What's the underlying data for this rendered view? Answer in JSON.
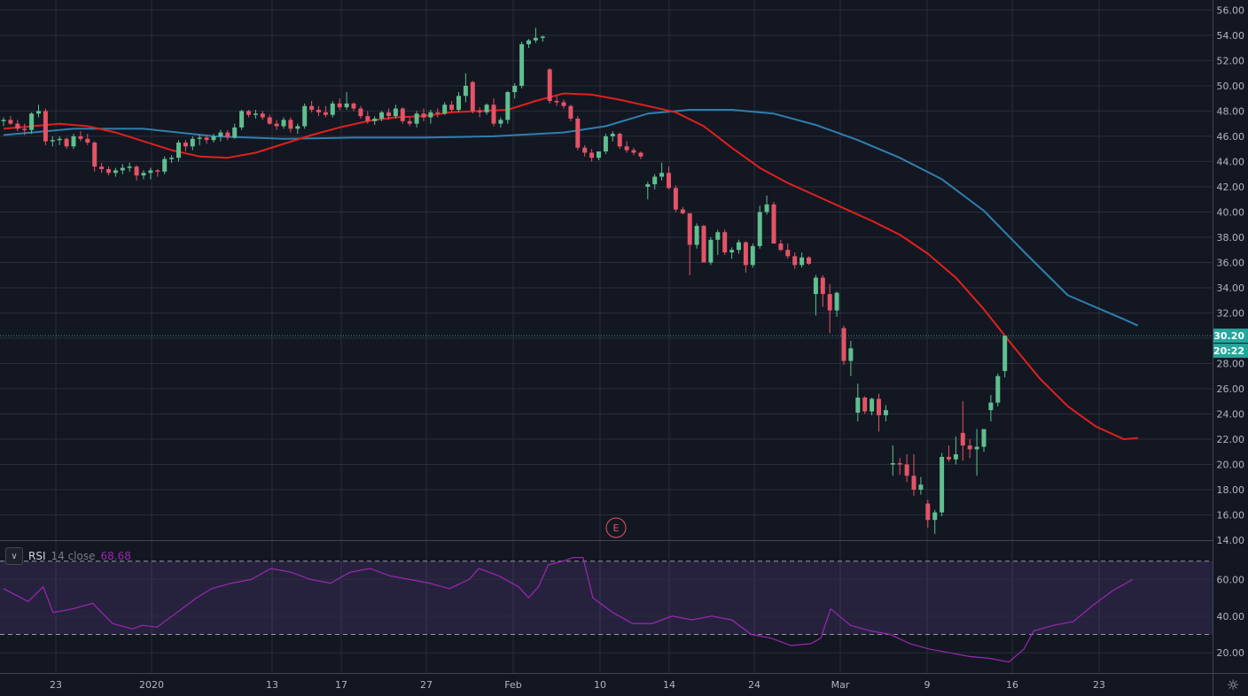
{
  "chart_data": [
    {
      "type": "candlestick",
      "price_axis": {
        "ticks": [
          "56.00",
          "54.00",
          "52.00",
          "50.00",
          "48.00",
          "46.00",
          "44.00",
          "42.00",
          "40.00",
          "38.00",
          "36.00",
          "34.00",
          "32.00",
          "30.00",
          "28.00",
          "26.00",
          "24.00",
          "22.00",
          "20.00",
          "18.00",
          "16.00",
          "14.00"
        ],
        "range": [
          14,
          56.8
        ]
      },
      "time_axis": {
        "labels": [
          "23",
          "2020",
          "13",
          "17",
          "27",
          "Feb",
          "10",
          "14",
          "24",
          "Mar",
          "9",
          "16",
          "23"
        ]
      },
      "last_price": {
        "value": 30.2,
        "label": "30.20",
        "countdown": "20:22"
      },
      "earnings_marker": "E",
      "candles": [
        [
          47.2,
          47.5,
          46.8,
          47.3
        ],
        [
          47.3,
          47.6,
          46.9,
          47.0
        ],
        [
          47.0,
          47.3,
          46.4,
          46.6
        ],
        [
          46.6,
          47.0,
          46.1,
          46.5
        ],
        [
          46.5,
          47.9,
          46.2,
          47.8
        ],
        [
          47.8,
          48.5,
          47.5,
          48.0
        ],
        [
          48.0,
          48.2,
          45.3,
          45.6
        ],
        [
          45.6,
          46.0,
          45.2,
          45.7
        ],
        [
          45.7,
          46.0,
          45.3,
          45.8
        ],
        [
          45.8,
          45.9,
          45.0,
          45.2
        ],
        [
          45.2,
          46.2,
          45.0,
          46.0
        ],
        [
          46.0,
          46.4,
          45.6,
          45.8
        ],
        [
          45.8,
          46.2,
          45.3,
          45.5
        ],
        [
          45.5,
          45.6,
          43.2,
          43.6
        ],
        [
          43.6,
          43.9,
          43.1,
          43.4
        ],
        [
          43.4,
          43.6,
          42.9,
          43.1
        ],
        [
          43.1,
          43.5,
          42.8,
          43.3
        ],
        [
          43.3,
          43.8,
          43.0,
          43.5
        ],
        [
          43.5,
          43.9,
          43.2,
          43.6
        ],
        [
          43.6,
          43.7,
          42.5,
          42.9
        ],
        [
          42.9,
          43.3,
          42.6,
          43.1
        ],
        [
          43.1,
          43.5,
          42.6,
          43.3
        ],
        [
          43.3,
          43.4,
          42.8,
          43.2
        ],
        [
          43.2,
          44.4,
          43.0,
          44.2
        ],
        [
          44.2,
          44.5,
          43.9,
          44.3
        ],
        [
          44.3,
          45.7,
          44.0,
          45.5
        ],
        [
          45.5,
          45.7,
          44.8,
          45.2
        ],
        [
          45.2,
          46.0,
          44.9,
          45.8
        ],
        [
          45.8,
          46.1,
          45.3,
          45.9
        ],
        [
          45.9,
          46.1,
          45.4,
          45.7
        ],
        [
          45.7,
          46.2,
          45.5,
          46.0
        ],
        [
          46.0,
          46.5,
          45.6,
          46.3
        ],
        [
          46.3,
          46.5,
          45.7,
          45.9
        ],
        [
          45.9,
          47.0,
          45.8,
          46.7
        ],
        [
          46.7,
          48.1,
          46.5,
          48.0
        ],
        [
          48.0,
          48.1,
          47.5,
          47.7
        ],
        [
          47.7,
          48.1,
          47.4,
          47.8
        ],
        [
          47.8,
          48.0,
          47.3,
          47.5
        ],
        [
          47.5,
          47.7,
          46.9,
          47.0
        ],
        [
          47.0,
          47.3,
          46.5,
          46.8
        ],
        [
          46.8,
          47.5,
          46.6,
          47.3
        ],
        [
          47.3,
          47.5,
          46.3,
          46.6
        ],
        [
          46.6,
          47.0,
          46.2,
          46.8
        ],
        [
          46.8,
          48.6,
          46.6,
          48.4
        ],
        [
          48.4,
          48.8,
          47.9,
          48.1
        ],
        [
          48.1,
          48.4,
          47.6,
          47.9
        ],
        [
          47.9,
          48.4,
          47.5,
          47.7
        ],
        [
          47.7,
          48.8,
          47.5,
          48.6
        ],
        [
          48.6,
          49.0,
          48.1,
          48.3
        ],
        [
          48.3,
          49.5,
          48.1,
          48.6
        ],
        [
          48.6,
          48.7,
          48.0,
          48.2
        ],
        [
          48.2,
          48.4,
          47.4,
          47.6
        ],
        [
          47.6,
          48.0,
          47.0,
          47.2
        ],
        [
          47.2,
          47.6,
          46.9,
          47.4
        ],
        [
          47.4,
          48.0,
          47.2,
          47.9
        ],
        [
          47.9,
          48.2,
          47.3,
          47.6
        ],
        [
          47.6,
          48.5,
          47.4,
          48.2
        ],
        [
          48.2,
          48.3,
          47.0,
          47.2
        ],
        [
          47.2,
          47.5,
          46.8,
          47.0
        ],
        [
          47.0,
          48.0,
          46.7,
          47.8
        ],
        [
          47.8,
          48.2,
          47.2,
          47.5
        ],
        [
          47.5,
          48.1,
          47.0,
          47.9
        ],
        [
          47.9,
          48.2,
          47.5,
          47.8
        ],
        [
          47.8,
          48.7,
          47.7,
          48.5
        ],
        [
          48.5,
          48.8,
          47.9,
          48.1
        ],
        [
          48.1,
          49.5,
          47.9,
          49.2
        ],
        [
          49.2,
          51.0,
          48.7,
          50.0
        ],
        [
          50.3,
          50.4,
          47.8,
          48.0
        ],
        [
          48.0,
          48.3,
          47.5,
          47.9
        ],
        [
          47.9,
          48.6,
          47.7,
          48.5
        ],
        [
          48.5,
          49.0,
          46.8,
          47.0
        ],
        [
          47.0,
          47.5,
          46.7,
          47.3
        ],
        [
          47.3,
          49.6,
          47.0,
          49.5
        ],
        [
          49.5,
          50.2,
          49.0,
          50.0
        ],
        [
          50.0,
          53.5,
          49.8,
          53.3
        ],
        [
          53.3,
          53.7,
          53.0,
          53.6
        ],
        [
          53.6,
          54.6,
          53.4,
          53.8
        ],
        [
          53.8,
          54.0,
          53.5,
          53.9
        ],
        [
          51.3,
          51.4,
          48.6,
          48.8
        ],
        [
          48.8,
          49.2,
          48.4,
          48.7
        ],
        [
          48.7,
          48.9,
          48.2,
          48.4
        ],
        [
          48.4,
          48.5,
          47.2,
          47.4
        ],
        [
          47.4,
          47.6,
          44.9,
          45.1
        ],
        [
          45.1,
          45.3,
          44.4,
          44.7
        ],
        [
          44.7,
          45.0,
          44.0,
          44.3
        ],
        [
          44.3,
          44.8,
          44.1,
          44.8
        ],
        [
          44.8,
          46.2,
          44.6,
          46.0
        ],
        [
          46.0,
          46.4,
          45.6,
          46.2
        ],
        [
          46.2,
          46.3,
          45.0,
          45.2
        ],
        [
          45.2,
          45.6,
          44.7,
          44.9
        ],
        [
          44.9,
          45.1,
          44.5,
          44.7
        ],
        [
          44.7,
          44.8,
          44.2,
          44.4
        ],
        [
          42.0,
          42.4,
          41.0,
          42.2
        ],
        [
          42.2,
          43.0,
          41.8,
          42.8
        ],
        [
          42.8,
          43.9,
          42.5,
          43.1
        ],
        [
          43.1,
          43.6,
          41.8,
          41.9
        ],
        [
          41.9,
          42.1,
          40.0,
          40.2
        ],
        [
          40.2,
          40.4,
          39.8,
          39.9
        ],
        [
          39.9,
          39.9,
          35.0,
          37.4
        ],
        [
          37.4,
          39.1,
          37.1,
          38.9
        ],
        [
          38.9,
          39.0,
          36.0,
          36.0
        ],
        [
          36.0,
          38.0,
          35.8,
          37.8
        ],
        [
          37.8,
          38.6,
          36.6,
          38.4
        ],
        [
          38.4,
          38.6,
          36.6,
          36.8
        ],
        [
          36.8,
          37.2,
          36.3,
          37.0
        ],
        [
          37.0,
          37.8,
          36.7,
          37.6
        ],
        [
          37.6,
          37.7,
          35.2,
          35.8
        ],
        [
          35.8,
          37.5,
          35.6,
          37.3
        ],
        [
          37.3,
          40.5,
          37.1,
          40.0
        ],
        [
          40.0,
          41.3,
          39.8,
          40.6
        ],
        [
          40.6,
          40.8,
          37.5,
          37.5
        ],
        [
          37.5,
          37.8,
          36.9,
          37.0
        ],
        [
          37.0,
          37.5,
          36.3,
          36.5
        ],
        [
          36.5,
          36.8,
          35.5,
          35.8
        ],
        [
          35.8,
          36.8,
          35.6,
          36.4
        ],
        [
          36.4,
          36.5,
          35.8,
          35.9
        ],
        [
          33.5,
          35.0,
          31.8,
          34.8
        ],
        [
          34.8,
          35.0,
          32.5,
          33.5
        ],
        [
          33.5,
          34.3,
          30.4,
          32.2
        ],
        [
          32.2,
          33.7,
          31.7,
          33.6
        ],
        [
          30.8,
          31.0,
          27.9,
          28.2
        ],
        [
          28.2,
          29.8,
          27.0,
          29.2
        ],
        [
          24.1,
          26.4,
          23.4,
          25.3
        ],
        [
          25.3,
          25.4,
          24.0,
          24.2
        ],
        [
          24.2,
          25.3,
          23.9,
          25.2
        ],
        [
          25.2,
          25.6,
          22.6,
          23.9
        ],
        [
          23.9,
          24.7,
          23.4,
          24.3
        ],
        [
          20.0,
          21.5,
          19.1,
          20.1
        ],
        [
          20.1,
          20.5,
          19.2,
          20.0
        ],
        [
          20.0,
          20.8,
          18.6,
          19.1
        ],
        [
          19.1,
          20.8,
          17.5,
          18.0
        ],
        [
          18.0,
          19.0,
          17.6,
          18.4
        ],
        [
          16.9,
          17.2,
          15.0,
          15.6
        ],
        [
          15.6,
          16.4,
          14.5,
          16.2
        ],
        [
          16.2,
          20.9,
          15.9,
          20.6
        ],
        [
          20.6,
          21.5,
          20.2,
          20.4
        ],
        [
          20.4,
          22.2,
          20.0,
          20.8
        ],
        [
          22.5,
          25.0,
          20.3,
          21.5
        ],
        [
          21.5,
          22.0,
          20.5,
          21.2
        ],
        [
          21.2,
          22.8,
          19.1,
          21.4
        ],
        [
          21.4,
          22.8,
          21.0,
          22.8
        ],
        [
          24.3,
          25.5,
          23.4,
          24.9
        ],
        [
          24.9,
          27.2,
          24.6,
          27.0
        ],
        [
          27.4,
          30.2,
          26.9,
          30.2
        ]
      ],
      "ma_red": [
        [
          0,
          46.6
        ],
        [
          8,
          47.0
        ],
        [
          12,
          46.8
        ],
        [
          16,
          46.3
        ],
        [
          20,
          45.6
        ],
        [
          24,
          44.9
        ],
        [
          28,
          44.4
        ],
        [
          32,
          44.3
        ],
        [
          36,
          44.7
        ],
        [
          40,
          45.4
        ],
        [
          44,
          46.1
        ],
        [
          48,
          46.7
        ],
        [
          52,
          47.2
        ],
        [
          56,
          47.5
        ],
        [
          60,
          47.6
        ],
        [
          64,
          47.9
        ],
        [
          68,
          48.0
        ],
        [
          72,
          48.1
        ],
        [
          76,
          48.8
        ],
        [
          80,
          49.4
        ],
        [
          84,
          49.3
        ],
        [
          88,
          48.9
        ],
        [
          92,
          48.4
        ],
        [
          96,
          47.9
        ],
        [
          100,
          46.8
        ],
        [
          104,
          45.1
        ],
        [
          108,
          43.5
        ],
        [
          112,
          42.3
        ],
        [
          116,
          41.3
        ],
        [
          120,
          40.3
        ],
        [
          124,
          39.3
        ],
        [
          128,
          38.2
        ],
        [
          132,
          36.7
        ],
        [
          136,
          34.8
        ],
        [
          140,
          32.3
        ],
        [
          144,
          29.5
        ],
        [
          148,
          26.8
        ],
        [
          152,
          24.6
        ],
        [
          156,
          23.0
        ],
        [
          160,
          22.0
        ],
        [
          162,
          22.1
        ]
      ],
      "ma_blue": [
        [
          0,
          46.1
        ],
        [
          10,
          46.6
        ],
        [
          20,
          46.6
        ],
        [
          30,
          46.0
        ],
        [
          40,
          45.8
        ],
        [
          50,
          45.9
        ],
        [
          60,
          45.9
        ],
        [
          70,
          46.0
        ],
        [
          80,
          46.3
        ],
        [
          86,
          46.8
        ],
        [
          92,
          47.8
        ],
        [
          98,
          48.1
        ],
        [
          104,
          48.1
        ],
        [
          110,
          47.8
        ],
        [
          116,
          46.9
        ],
        [
          122,
          45.7
        ],
        [
          128,
          44.3
        ],
        [
          134,
          42.6
        ],
        [
          140,
          40.1
        ],
        [
          146,
          36.7
        ],
        [
          152,
          33.4
        ],
        [
          160,
          31.5
        ],
        [
          162,
          31.0
        ]
      ]
    },
    {
      "type": "line",
      "indicator": {
        "name": "RSI",
        "params": "14 close",
        "value": "68.68"
      },
      "rsi_axis": {
        "ticks": [
          "60.00",
          "40.00",
          "20.00"
        ],
        "levels": [
          70,
          30
        ]
      },
      "rsi": [
        [
          0,
          55
        ],
        [
          5,
          48
        ],
        [
          8,
          56
        ],
        [
          10,
          42
        ],
        [
          14,
          44
        ],
        [
          18,
          47
        ],
        [
          22,
          36
        ],
        [
          26,
          33
        ],
        [
          28,
          35
        ],
        [
          31,
          34
        ],
        [
          35,
          42
        ],
        [
          39,
          50
        ],
        [
          42,
          55
        ],
        [
          46,
          58
        ],
        [
          50,
          60
        ],
        [
          54,
          66
        ],
        [
          58,
          64
        ],
        [
          62,
          60
        ],
        [
          66,
          58
        ],
        [
          70,
          64
        ],
        [
          74,
          66
        ],
        [
          78,
          62
        ],
        [
          82,
          60
        ],
        [
          86,
          58
        ],
        [
          90,
          55
        ],
        [
          94,
          60
        ],
        [
          96,
          66
        ],
        [
          100,
          62
        ],
        [
          104,
          56
        ],
        [
          106,
          50
        ],
        [
          108,
          56
        ],
        [
          110,
          68
        ],
        [
          113,
          70
        ],
        [
          115,
          72
        ],
        [
          117,
          72
        ],
        [
          119,
          50
        ],
        [
          123,
          42
        ],
        [
          127,
          36
        ],
        [
          131,
          36
        ],
        [
          135,
          40
        ],
        [
          139,
          38
        ],
        [
          143,
          40
        ],
        [
          147,
          38
        ],
        [
          151,
          30
        ],
        [
          155,
          28
        ],
        [
          159,
          24
        ],
        [
          163,
          25
        ],
        [
          165,
          28
        ],
        [
          167,
          44
        ],
        [
          171,
          35
        ],
        [
          175,
          32
        ],
        [
          179,
          30
        ],
        [
          183,
          25
        ],
        [
          187,
          22
        ],
        [
          191,
          20
        ],
        [
          195,
          18
        ],
        [
          199,
          17
        ],
        [
          203,
          15
        ],
        [
          206,
          22
        ],
        [
          208,
          32
        ],
        [
          212,
          35
        ],
        [
          216,
          37
        ],
        [
          220,
          46
        ],
        [
          224,
          54
        ],
        [
          228,
          60
        ]
      ]
    }
  ]
}
